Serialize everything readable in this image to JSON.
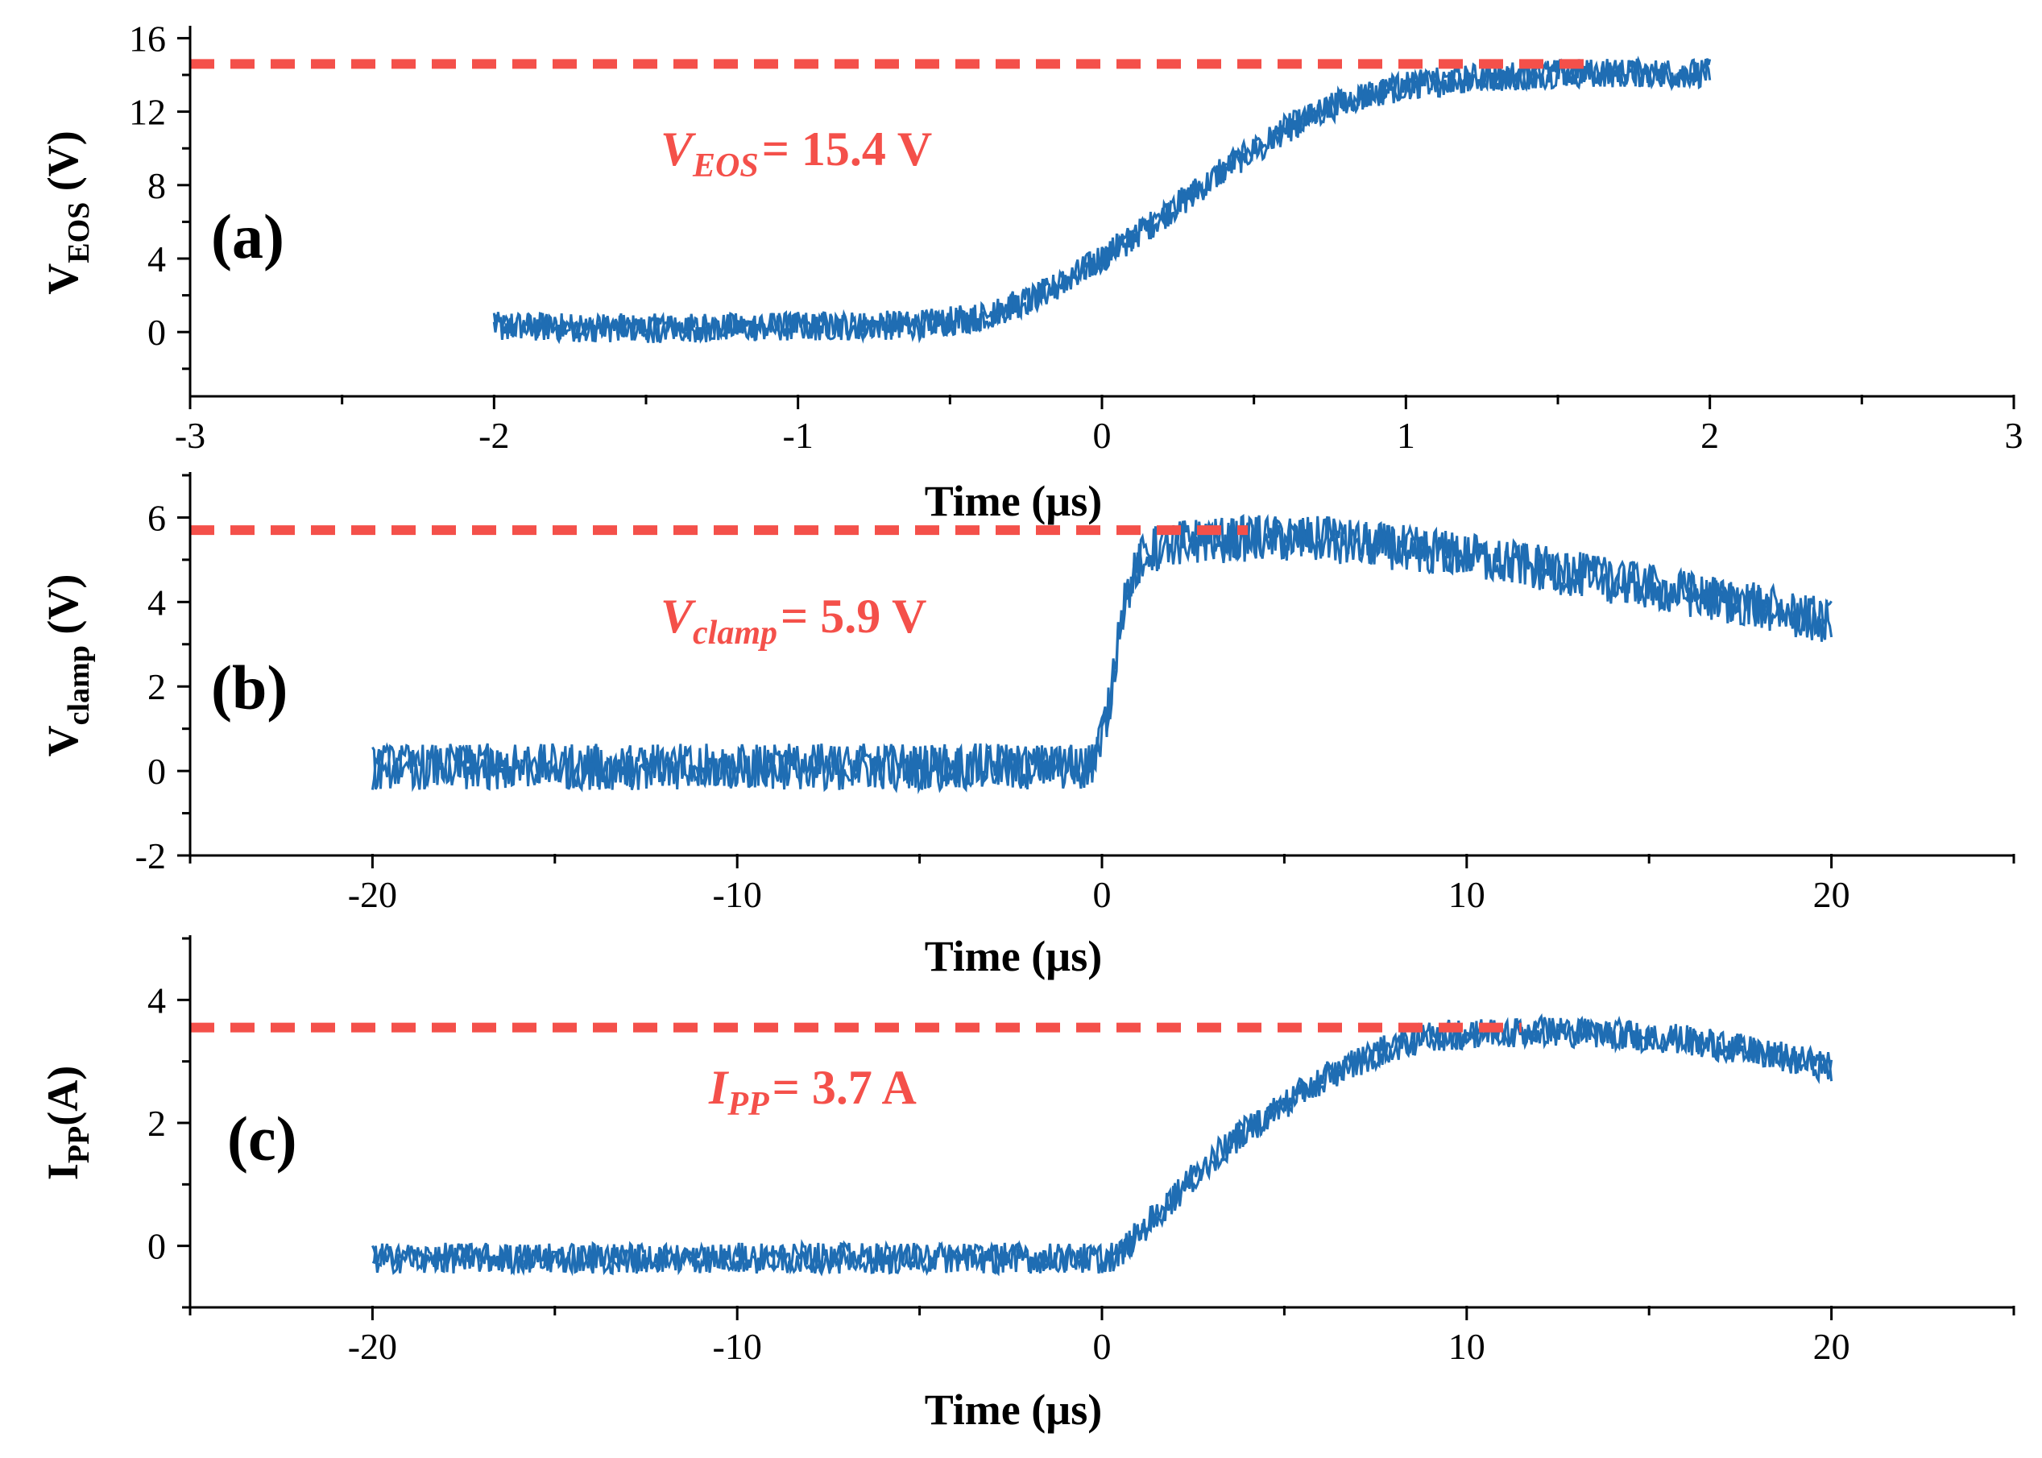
{
  "colors": {
    "trace": "#1f6db3",
    "ref_line": "#f4504a",
    "axis": "#000000"
  },
  "chart_data": [
    {
      "type": "line",
      "panel_label": "(a)",
      "ylabel_main": "V",
      "ylabel_sub": "EOS",
      "ylabel_unit": " (V)",
      "xlabel": "Time (µs)",
      "xlim": [
        -3,
        3
      ],
      "ylim": [
        -3.5,
        16.5
      ],
      "xticks": [
        -3,
        -2,
        -1,
        0,
        1,
        2,
        3
      ],
      "xtick_labels": [
        "-3",
        "-2",
        "-1",
        "0",
        "1",
        "2",
        "3"
      ],
      "yticks": [
        0,
        4,
        8,
        12,
        16
      ],
      "ytick_labels": [
        "0",
        "4",
        "8",
        "12",
        "16"
      ],
      "ref_line": {
        "y": 14.6,
        "x_start": -3,
        "x_end": 1.6
      },
      "annotation": {
        "var_main": "V",
        "var_sub": "EOS",
        "value": "= 15.4 V"
      },
      "series": [
        {
          "name": "V_EOS",
          "noise": 0.8,
          "x": [
            -2,
            -1.5,
            -1,
            -0.6,
            -0.4,
            -0.2,
            0,
            0.2,
            0.4,
            0.6,
            0.8,
            1.0,
            1.2,
            1.5,
            2.0
          ],
          "y": [
            0.3,
            0.2,
            0.3,
            0.4,
            0.8,
            2.0,
            4.0,
            6.3,
            8.8,
            11.0,
            12.6,
            13.4,
            13.8,
            14.1,
            14.1
          ]
        }
      ]
    },
    {
      "type": "line",
      "panel_label": "(b)",
      "ylabel_main": "V",
      "ylabel_sub": "clamp",
      "ylabel_unit": " (V)",
      "xlabel": "Time (µs)",
      "xlim": [
        -25,
        25
      ],
      "ylim": [
        -2,
        7
      ],
      "xticks": [
        -20,
        -10,
        0,
        10,
        20
      ],
      "xtick_labels": [
        "-20",
        "-10",
        "0",
        "10",
        "20"
      ],
      "yticks": [
        -2,
        0,
        2,
        4,
        6
      ],
      "ytick_labels": [
        "-2",
        "0",
        "2",
        "4",
        "6"
      ],
      "ref_line": {
        "y": 5.7,
        "x_start": -25,
        "x_end": 4
      },
      "annotation": {
        "var_main": "V",
        "var_sub": "clamp",
        "value": "= 5.9 V"
      },
      "series": [
        {
          "name": "V_clamp",
          "noise": 0.55,
          "x": [
            -20,
            -10,
            -0.3,
            0.2,
            0.5,
            0.8,
            1.2,
            2,
            4,
            6,
            8,
            10,
            12,
            14,
            16,
            18,
            20
          ],
          "y": [
            0.1,
            0.1,
            0.1,
            1.5,
            3.6,
            4.5,
            5.2,
            5.4,
            5.5,
            5.5,
            5.3,
            5.1,
            4.8,
            4.5,
            4.2,
            3.9,
            3.5
          ]
        }
      ]
    },
    {
      "type": "line",
      "panel_label": "(c)",
      "ylabel_main": "I",
      "ylabel_sub": "PP",
      "ylabel_unit": "(A)",
      "xlabel": "Time (µs)",
      "xlim": [
        -25,
        25
      ],
      "ylim": [
        -1,
        5
      ],
      "xticks": [
        -20,
        -10,
        0,
        10,
        20
      ],
      "xtick_labels": [
        "-20",
        "-10",
        "0",
        "10",
        "20"
      ],
      "yticks": [
        0,
        2,
        4
      ],
      "ytick_labels": [
        "0",
        "2",
        "4"
      ],
      "ref_line": {
        "y": 3.55,
        "x_start": -25,
        "x_end": 11.5
      },
      "annotation": {
        "var_main": "I",
        "var_sub": "PP",
        "value": "= 3.7 A"
      },
      "series": [
        {
          "name": "I_PP",
          "noise": 0.25,
          "x": [
            -20,
            -10,
            0,
            0.5,
            1,
            2,
            3,
            4,
            5,
            6,
            7,
            8,
            9,
            10,
            12,
            14,
            16,
            18,
            20
          ],
          "y": [
            -0.2,
            -0.2,
            -0.2,
            -0.15,
            0.2,
            0.8,
            1.4,
            1.9,
            2.3,
            2.7,
            3.0,
            3.25,
            3.4,
            3.45,
            3.5,
            3.45,
            3.35,
            3.15,
            2.9
          ]
        }
      ]
    }
  ]
}
